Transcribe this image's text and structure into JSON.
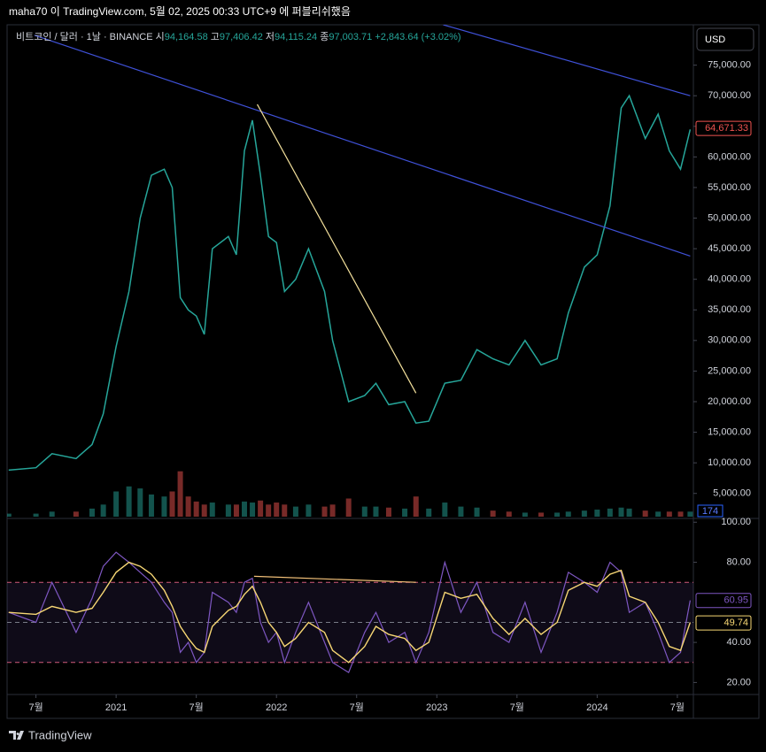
{
  "header": "maha70 이 TradingView.com, 5월 02, 2025 00:33 UTC+9 에 퍼블리쉬했음",
  "currency": "USD",
  "footer": "TradingView",
  "chart_data": [
    {
      "type": "line",
      "legend": {
        "symbol": "비트코인 / 달러 · 1날 · BINANCE",
        "ohlc": [
          {
            "label": "시",
            "value": "94,164.58"
          },
          {
            "label": "고",
            "value": "97,406.42"
          },
          {
            "label": "저",
            "value": "94,115.24"
          },
          {
            "label": "종",
            "value": "97,003.71"
          }
        ],
        "change": "+2,843.64 (+3.02%)"
      },
      "x": [
        2020.33,
        2020.5,
        2020.6,
        2020.75,
        2020.85,
        2020.92,
        2021.0,
        2021.08,
        2021.15,
        2021.22,
        2021.3,
        2021.35,
        2021.4,
        2021.45,
        2021.5,
        2021.55,
        2021.6,
        2021.7,
        2021.75,
        2021.8,
        2021.85,
        2021.9,
        2021.95,
        2022.0,
        2022.05,
        2022.12,
        2022.2,
        2022.3,
        2022.35,
        2022.45,
        2022.55,
        2022.62,
        2022.7,
        2022.8,
        2022.87,
        2022.95,
        2023.05,
        2023.15,
        2023.25,
        2023.35,
        2023.45,
        2023.55,
        2023.65,
        2023.75,
        2023.82,
        2023.92,
        2024.0,
        2024.08,
        2024.15,
        2024.2,
        2024.3,
        2024.38,
        2024.45,
        2024.52,
        2024.58
      ],
      "series": [
        {
          "color": "#26a69a",
          "values": [
            8800,
            9200,
            11500,
            10700,
            13000,
            18000,
            29000,
            38000,
            50000,
            57000,
            58000,
            55000,
            37000,
            35000,
            34000,
            31000,
            45000,
            47000,
            44000,
            61000,
            66000,
            57000,
            47000,
            46000,
            38000,
            40000,
            45000,
            38000,
            30000,
            20000,
            21000,
            23000,
            19500,
            20000,
            16500,
            16800,
            23000,
            23500,
            28500,
            27000,
            26000,
            30000,
            26000,
            27000,
            34500,
            42000,
            44000,
            52000,
            68000,
            70000,
            63000,
            67000,
            61000,
            58000,
            64500
          ]
        }
      ],
      "volume": {
        "values": [
          3,
          3,
          5,
          5,
          8,
          12,
          25,
          30,
          28,
          22,
          20,
          25,
          45,
          20,
          15,
          12,
          14,
          12,
          12,
          15,
          14,
          16,
          12,
          14,
          12,
          10,
          12,
          10,
          12,
          18,
          10,
          10,
          9,
          8,
          20,
          8,
          14,
          10,
          9,
          6,
          5,
          4,
          4,
          4,
          5,
          6,
          7,
          8,
          9,
          8,
          6,
          5,
          5,
          5,
          5
        ],
        "ylim": [
          0,
          100
        ],
        "up_color": "#26a69a",
        "down_color": "#ef5350",
        "last_label": "174"
      },
      "trendlines": [
        {
          "color": "#3f51d8",
          "x": [
            2020.49,
            2024.58
          ],
          "y": [
            79900,
            43800
          ]
        },
        {
          "color": "#3f51d8",
          "x": [
            2023.04,
            2024.58
          ],
          "y": [
            81600,
            70000
          ]
        },
        {
          "color": "#f4e19c",
          "x": [
            2021.88,
            2022.87
          ],
          "y": [
            68600,
            21400
          ]
        }
      ],
      "last_price": {
        "value": 64671.33,
        "label": "64,671.33",
        "color": "#ef5350"
      },
      "xlim": [
        2020.32,
        2024.6
      ],
      "ylim": [
        1200,
        81600
      ],
      "yticks": [
        {
          "value": 5000,
          "label": "5,000.00"
        },
        {
          "value": 10000,
          "label": "10,000.00"
        },
        {
          "value": 15000,
          "label": "15,000.00"
        },
        {
          "value": 20000,
          "label": "20,000.00"
        },
        {
          "value": 25000,
          "label": "25,000.00"
        },
        {
          "value": 30000,
          "label": "30,000.00"
        },
        {
          "value": 35000,
          "label": "35,000.00"
        },
        {
          "value": 40000,
          "label": "40,000.00"
        },
        {
          "value": 45000,
          "label": "45,000.00"
        },
        {
          "value": 50000,
          "label": "50,000.00"
        },
        {
          "value": 55000,
          "label": "55,000.00"
        },
        {
          "value": 60000,
          "label": "60,000.00"
        },
        {
          "value": 65000,
          "label": "65,000.00"
        },
        {
          "value": 70000,
          "label": "70,000.00"
        },
        {
          "value": 75000,
          "label": "75,000.00"
        }
      ]
    },
    {
      "type": "rsi",
      "x": [
        2020.33,
        2020.5,
        2020.6,
        2020.75,
        2020.85,
        2020.92,
        2021.0,
        2021.08,
        2021.15,
        2021.22,
        2021.3,
        2021.35,
        2021.4,
        2021.45,
        2021.5,
        2021.55,
        2021.6,
        2021.7,
        2021.75,
        2021.8,
        2021.85,
        2021.9,
        2021.95,
        2022.0,
        2022.05,
        2022.12,
        2022.2,
        2022.3,
        2022.35,
        2022.45,
        2022.55,
        2022.62,
        2022.7,
        2022.8,
        2022.87,
        2022.95,
        2023.05,
        2023.15,
        2023.25,
        2023.35,
        2023.45,
        2023.55,
        2023.65,
        2023.75,
        2023.82,
        2023.92,
        2024.0,
        2024.08,
        2024.15,
        2024.2,
        2024.3,
        2024.38,
        2024.45,
        2024.52,
        2024.58
      ],
      "series": [
        {
          "color": "#7e57c2",
          "values": [
            55,
            50,
            70,
            45,
            62,
            78,
            85,
            80,
            75,
            70,
            60,
            55,
            35,
            40,
            30,
            35,
            65,
            60,
            55,
            70,
            72,
            50,
            40,
            45,
            30,
            45,
            60,
            40,
            30,
            25,
            45,
            55,
            40,
            45,
            30,
            45,
            80,
            55,
            70,
            45,
            40,
            60,
            35,
            55,
            75,
            70,
            65,
            80,
            75,
            55,
            60,
            45,
            30,
            35,
            61
          ],
          "last_label": {
            "value": 60.95,
            "label": "60.95"
          }
        },
        {
          "color": "#f7d774",
          "values": [
            55,
            54,
            58,
            55,
            57,
            65,
            75,
            80,
            78,
            74,
            66,
            58,
            48,
            42,
            37,
            35,
            48,
            56,
            58,
            64,
            68,
            60,
            50,
            45,
            38,
            42,
            50,
            45,
            36,
            30,
            38,
            48,
            44,
            42,
            36,
            40,
            65,
            62,
            64,
            52,
            44,
            52,
            44,
            50,
            66,
            70,
            68,
            74,
            76,
            63,
            60,
            50,
            38,
            36,
            50
          ],
          "last_label": {
            "value": 49.74,
            "label": "49.74"
          }
        }
      ],
      "bands": [
        70,
        50,
        30
      ],
      "band_color": "#7e57c2",
      "trendlines": [
        {
          "color": "#f4c27a",
          "x": [
            2021.86,
            2022.87
          ],
          "y": [
            73,
            70
          ]
        }
      ],
      "xlim": [
        2020.32,
        2024.6
      ],
      "ylim": [
        14,
        101
      ],
      "yticks": [
        {
          "value": 20,
          "label": "20.00"
        },
        {
          "value": 40,
          "label": "40.00"
        },
        {
          "value": 80,
          "label": "80.00"
        },
        {
          "value": 100,
          "label": "100.00"
        }
      ],
      "xticks": [
        {
          "value": 2020.5,
          "label": "7월"
        },
        {
          "value": 2021.0,
          "label": "2021"
        },
        {
          "value": 2021.5,
          "label": "7월"
        },
        {
          "value": 2022.0,
          "label": "2022"
        },
        {
          "value": 2022.5,
          "label": "7월"
        },
        {
          "value": 2023.0,
          "label": "2023"
        },
        {
          "value": 2023.5,
          "label": "7월"
        },
        {
          "value": 2024.0,
          "label": "2024"
        },
        {
          "value": 2024.5,
          "label": "7월"
        }
      ]
    }
  ]
}
